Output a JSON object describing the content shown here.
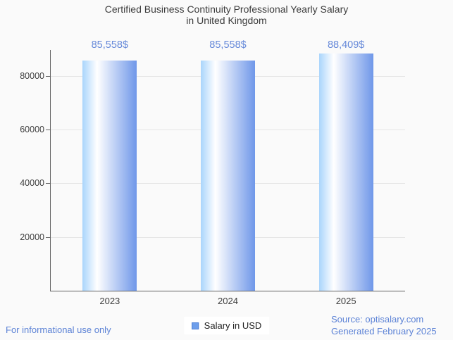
{
  "title": {
    "line1": "Certified Business Continuity Professional Yearly Salary",
    "line2": "in United Kingdom"
  },
  "legend": {
    "label": "Salary in USD"
  },
  "footer": {
    "disclaimer": "For informational use only",
    "source": "Source: optisalary.com",
    "generated": "Generated February 2025"
  },
  "colors": {
    "background": "#fafafa",
    "title_text": "#3c3c3c",
    "axis_line": "#616161",
    "gridline": "#e4e4e4",
    "tick_text": "#3e3e3e",
    "annotation_text": "#6689d9",
    "footer_text": "#5d83d6",
    "legend_swatch": "#6d9eeb",
    "legend_swatch_border": "#4c7fd6",
    "bar_gradient": [
      "#aad5fc",
      "#ffffff",
      "#6f97e9"
    ]
  },
  "chart_data": {
    "type": "bar",
    "title": "Certified Business Continuity Professional Yearly Salary in United Kingdom",
    "categories": [
      "2023",
      "2024",
      "2025"
    ],
    "series": [
      {
        "name": "Salary in USD",
        "values": [
          85558,
          85558,
          88409
        ]
      }
    ],
    "value_labels": [
      "85,558$",
      "85,558$",
      "88,409$"
    ],
    "xlabel": "",
    "ylabel": "",
    "ylim": [
      0,
      89600
    ],
    "yticks": [
      20000,
      40000,
      60000,
      80000
    ],
    "ytick_labels": [
      "20000",
      "40000",
      "60000",
      "80000"
    ],
    "grid": true,
    "legend_position": "bottom",
    "annotations_position": "above bars"
  }
}
